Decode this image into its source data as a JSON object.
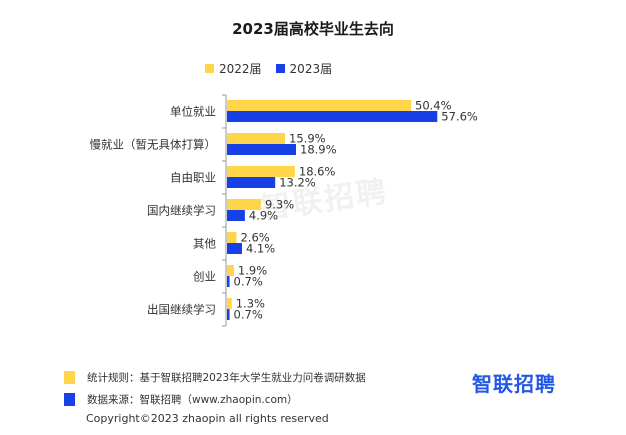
{
  "title": "2023届高校毕业生去向",
  "legend": [
    {
      "label": "2022届",
      "color": "#FFD64A"
    },
    {
      "label": "2023届",
      "color": "#1740E6"
    }
  ],
  "chart_data": {
    "type": "bar",
    "orientation": "horizontal",
    "title": "2023届高校毕业生去向",
    "categories": [
      "单位就业",
      "慢就业（暂无具体打算）",
      "自由职业",
      "国内继续学习",
      "其他",
      "创业",
      "出国继续学习"
    ],
    "series": [
      {
        "name": "2022届",
        "color": "#FFD64A",
        "values": [
          50.4,
          15.9,
          18.6,
          9.3,
          2.6,
          1.9,
          1.3
        ],
        "labels": [
          "50.4%",
          "15.9%",
          "18.6%",
          "9.3%",
          "2.6%",
          "1.9%",
          "1.3%"
        ]
      },
      {
        "name": "2023届",
        "color": "#1740E6",
        "values": [
          57.6,
          18.9,
          13.2,
          4.9,
          4.1,
          0.7,
          0.7
        ],
        "labels": [
          "57.6%",
          "18.9%",
          "13.2%",
          "4.9%",
          "4.1%",
          "0.7%",
          "0.7%"
        ]
      }
    ],
    "xlim": [
      0,
      60
    ],
    "legend_position": "top",
    "grid": false
  },
  "watermark": "智联招聘",
  "notes": [
    {
      "text": "统计规则：基于智联招聘2023年大学生就业力问卷调研数据",
      "color": "#FFD64A"
    },
    {
      "text": "数据来源：智联招聘（www.zhaopin.com）",
      "color": "#1740E6"
    }
  ],
  "brand": "智联招聘",
  "copyright": "Copyright©2023 zhaopin all rights reserved"
}
